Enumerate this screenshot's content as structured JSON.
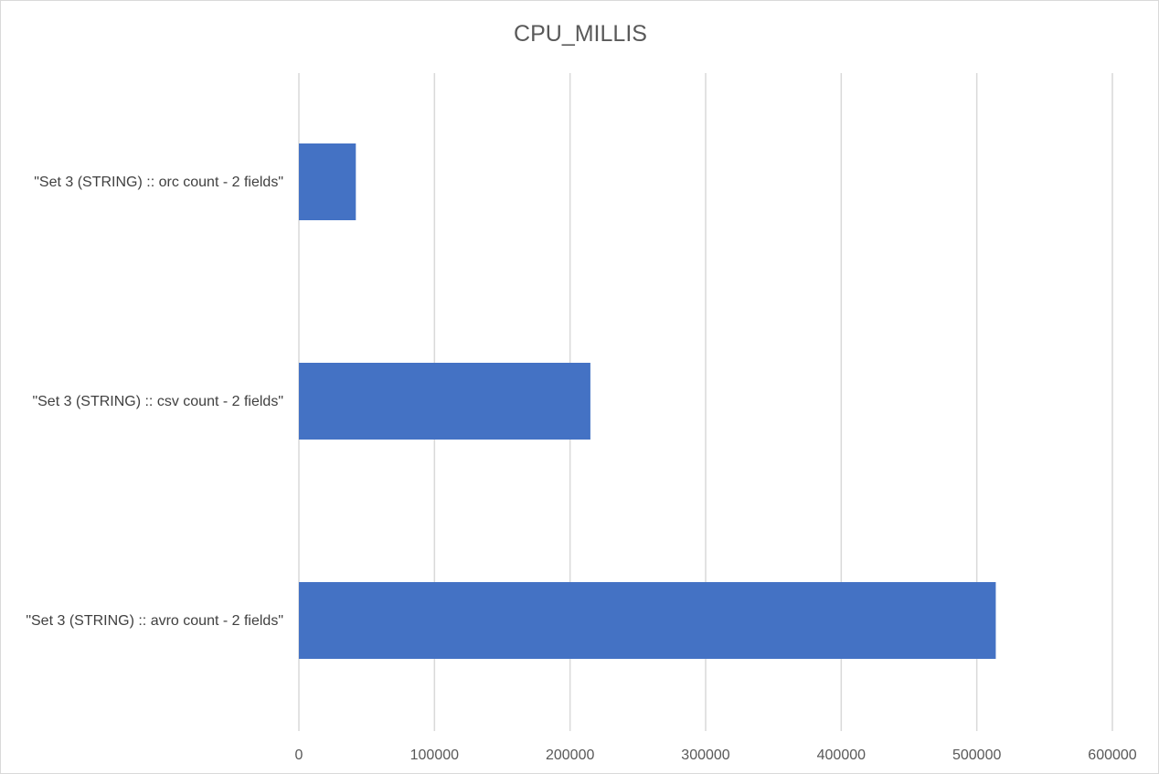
{
  "chart_data": {
    "type": "bar",
    "orientation": "horizontal",
    "title": "CPU_MILLIS",
    "xlabel": "",
    "ylabel": "",
    "categories": [
      "\"Set 3 (STRING) :: orc count - 2 fields\"",
      "\"Set 3 (STRING) :: csv count - 2 fields\"",
      "\"Set 3 (STRING) :: avro count - 2 fields\""
    ],
    "values": [
      42000,
      215000,
      514000
    ],
    "xlim": [
      0,
      600000
    ],
    "xticks": [
      0,
      100000,
      200000,
      300000,
      400000,
      500000,
      600000
    ],
    "xtick_labels": [
      "0",
      "100000",
      "200000",
      "300000",
      "400000",
      "500000",
      "600000"
    ],
    "grid": true,
    "legend": "none",
    "bar_color": "#4472C4",
    "grid_color": "#D9D9D9",
    "text_color": "#595959"
  }
}
